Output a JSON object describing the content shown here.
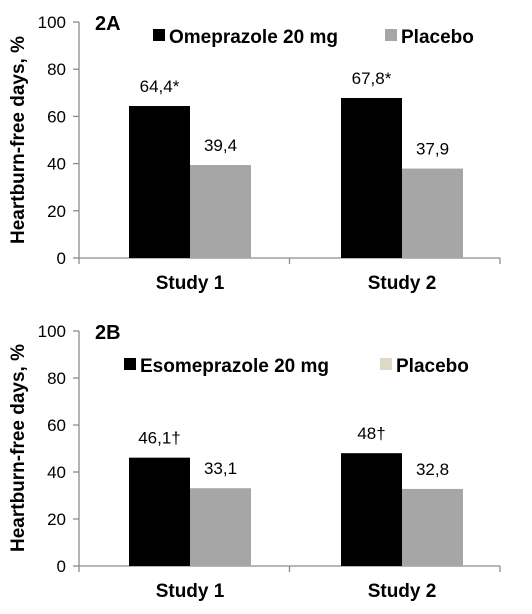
{
  "chart_data": [
    {
      "type": "bar",
      "panel_label": "2A",
      "ylabel": "Heartburn-free days, %",
      "ylim": [
        0,
        100
      ],
      "yticks": [
        "0",
        "20",
        "40",
        "60",
        "80",
        "100"
      ],
      "categories": [
        "Study 1",
        "Study 2"
      ],
      "grid": false,
      "legend_position": "top",
      "series": [
        {
          "name": "Omeprazole 20 mg",
          "color": "#000000",
          "values": [
            64.4,
            67.8
          ],
          "labels": [
            "64,4*",
            "67,8*"
          ]
        },
        {
          "name": "Placebo",
          "color": "#a6a6a6",
          "values": [
            39.4,
            37.9
          ],
          "labels": [
            "39,4",
            "37,9"
          ]
        }
      ]
    },
    {
      "type": "bar",
      "panel_label": "2B",
      "ylabel": "Heartburn-free days, %",
      "ylim": [
        0,
        100
      ],
      "yticks": [
        "0",
        "20",
        "40",
        "60",
        "80",
        "100"
      ],
      "categories": [
        "Study 1",
        "Study 2"
      ],
      "grid": false,
      "legend_position": "top",
      "series": [
        {
          "name": "Esomeprazole 20 mg",
          "color": "#000000",
          "values": [
            46.1,
            48
          ],
          "labels": [
            "46,1†",
            "48†"
          ]
        },
        {
          "name": "Placebo",
          "color": "#a6a6a6",
          "legend_color": "#ddd9c3",
          "values": [
            33.1,
            32.8
          ],
          "labels": [
            "33,1",
            "32,8"
          ]
        }
      ]
    }
  ]
}
